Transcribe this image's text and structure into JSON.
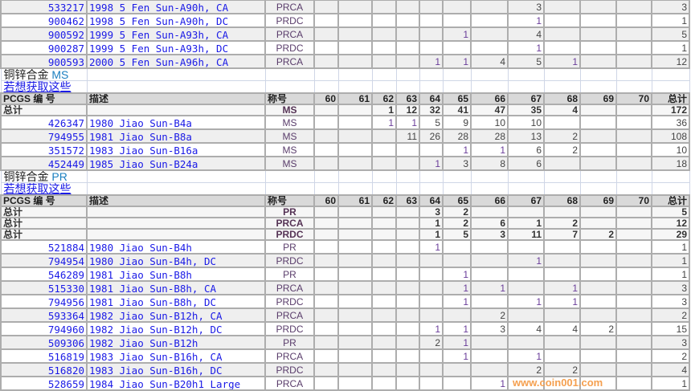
{
  "columns": {
    "id": "PCGS 编 号",
    "desc": "描述",
    "grade": "称号",
    "grades": [
      "60",
      "61",
      "62",
      "63",
      "64",
      "65",
      "66",
      "67",
      "68",
      "69",
      "70"
    ],
    "total": "总计"
  },
  "total_label": "总计",
  "link_text": "若想获取这些",
  "top_rows": [
    {
      "id": "533217",
      "desc": "1998 5 Fen Sun-A90h, CA",
      "grade": "PRCA",
      "counts": [
        null,
        null,
        null,
        null,
        null,
        null,
        null,
        3,
        null,
        null,
        null
      ],
      "total": 3
    },
    {
      "id": "900462",
      "desc": "1998 5 Fen Sun-A90h, DC",
      "grade": "PRDC",
      "counts": [
        null,
        null,
        null,
        null,
        null,
        null,
        null,
        1,
        null,
        null,
        null
      ],
      "total": 1
    },
    {
      "id": "900592",
      "desc": "1999 5 Fen Sun-A93h, CA",
      "grade": "PRCA",
      "counts": [
        null,
        null,
        null,
        null,
        null,
        1,
        null,
        4,
        null,
        null,
        null
      ],
      "total": 5
    },
    {
      "id": "900287",
      "desc": "1999 5 Fen Sun-A93h, DC",
      "grade": "PRDC",
      "counts": [
        null,
        null,
        null,
        null,
        null,
        null,
        null,
        1,
        null,
        null,
        null
      ],
      "total": 1
    },
    {
      "id": "900593",
      "desc": "2000 5 Fen Sun-A96h, CA",
      "grade": "PRCA",
      "counts": [
        null,
        null,
        null,
        null,
        1,
        1,
        4,
        5,
        1,
        null,
        null
      ],
      "total": 12
    }
  ],
  "sections": [
    {
      "metal": "铜锌合金",
      "type": "MS",
      "totals": [
        {
          "grade": "MS",
          "counts": [
            null,
            null,
            1,
            12,
            32,
            41,
            47,
            35,
            4,
            null,
            null
          ],
          "total": 172
        }
      ],
      "rows": [
        {
          "id": "426347",
          "desc": "1980 Jiao Sun-B4a",
          "grade": "MS",
          "counts": [
            null,
            null,
            1,
            1,
            5,
            9,
            10,
            10,
            null,
            null,
            null
          ],
          "total": 36
        },
        {
          "id": "794955",
          "desc": "1981 Jiao Sun-B8a",
          "grade": "MS",
          "counts": [
            null,
            null,
            null,
            11,
            26,
            28,
            28,
            13,
            2,
            null,
            null
          ],
          "total": 108
        },
        {
          "id": "351572",
          "desc": "1983 Jiao Sun-B16a",
          "grade": "MS",
          "counts": [
            null,
            null,
            null,
            null,
            null,
            1,
            1,
            6,
            2,
            null,
            null
          ],
          "total": 10
        },
        {
          "id": "452449",
          "desc": "1985 Jiao Sun-B24a",
          "grade": "MS",
          "counts": [
            null,
            null,
            null,
            null,
            1,
            3,
            8,
            6,
            null,
            null,
            null
          ],
          "total": 18
        }
      ]
    },
    {
      "metal": "铜锌合金",
      "type": "PR",
      "totals": [
        {
          "grade": "PR",
          "counts": [
            null,
            null,
            null,
            null,
            3,
            2,
            null,
            null,
            null,
            null,
            null
          ],
          "total": 5
        },
        {
          "grade": "PRCA",
          "counts": [
            null,
            null,
            null,
            null,
            1,
            2,
            6,
            1,
            2,
            null,
            null
          ],
          "total": 12
        },
        {
          "grade": "PRDC",
          "counts": [
            null,
            null,
            null,
            null,
            1,
            5,
            3,
            11,
            7,
            2,
            null
          ],
          "total": 29
        }
      ],
      "rows": [
        {
          "id": "521884",
          "desc": "1980 Jiao Sun-B4h",
          "grade": "PR",
          "counts": [
            null,
            null,
            null,
            null,
            1,
            null,
            null,
            null,
            null,
            null,
            null
          ],
          "total": 1
        },
        {
          "id": "794954",
          "desc": "1980 Jiao Sun-B4h, DC",
          "grade": "PRDC",
          "counts": [
            null,
            null,
            null,
            null,
            null,
            null,
            null,
            1,
            null,
            null,
            null
          ],
          "total": 1
        },
        {
          "id": "546289",
          "desc": "1981 Jiao Sun-B8h",
          "grade": "PR",
          "counts": [
            null,
            null,
            null,
            null,
            null,
            1,
            null,
            null,
            null,
            null,
            null
          ],
          "total": 1
        },
        {
          "id": "515330",
          "desc": "1981 Jiao Sun-B8h, CA",
          "grade": "PRCA",
          "counts": [
            null,
            null,
            null,
            null,
            null,
            1,
            1,
            null,
            1,
            null,
            null
          ],
          "total": 3
        },
        {
          "id": "794956",
          "desc": "1981 Jiao Sun-B8h, DC",
          "grade": "PRDC",
          "counts": [
            null,
            null,
            null,
            null,
            null,
            1,
            null,
            1,
            1,
            null,
            null
          ],
          "total": 3
        },
        {
          "id": "593364",
          "desc": "1982 Jiao Sun-B12h, CA",
          "grade": "PRCA",
          "counts": [
            null,
            null,
            null,
            null,
            null,
            null,
            2,
            null,
            null,
            null,
            null
          ],
          "total": 2
        },
        {
          "id": "794960",
          "desc": "1982 Jiao Sun-B12h, DC",
          "grade": "PRDC",
          "counts": [
            null,
            null,
            null,
            null,
            1,
            1,
            3,
            4,
            4,
            2,
            null
          ],
          "total": 15
        },
        {
          "id": "509306",
          "desc": "1982 Jiao Sun-B12h",
          "grade": "PR",
          "counts": [
            null,
            null,
            null,
            null,
            2,
            1,
            null,
            null,
            null,
            null,
            null
          ],
          "total": 3
        },
        {
          "id": "516819",
          "desc": "1983 Jiao Sun-B16h, CA",
          "grade": "PRCA",
          "counts": [
            null,
            null,
            null,
            null,
            null,
            1,
            null,
            1,
            null,
            null,
            null
          ],
          "total": 2
        },
        {
          "id": "516820",
          "desc": "1983 Jiao Sun-B16h, DC",
          "grade": "PRDC",
          "counts": [
            null,
            null,
            null,
            null,
            null,
            null,
            null,
            2,
            2,
            null,
            null
          ],
          "total": 4
        },
        {
          "id": "528659",
          "desc": "1984 Jiao Sun-B20h1 Large",
          "grade": "PRCA",
          "counts": [
            null,
            null,
            null,
            null,
            null,
            null,
            1,
            null,
            null,
            null,
            null
          ],
          "total": 1
        }
      ]
    }
  ],
  "watermark": "www.coin001.com",
  "colors": {
    "link": "#1a1ae6",
    "header_bg": "#d9d9d9",
    "alt_row_bg": "#efefef",
    "grid": "#adadad",
    "watermark": "#f5a050"
  }
}
